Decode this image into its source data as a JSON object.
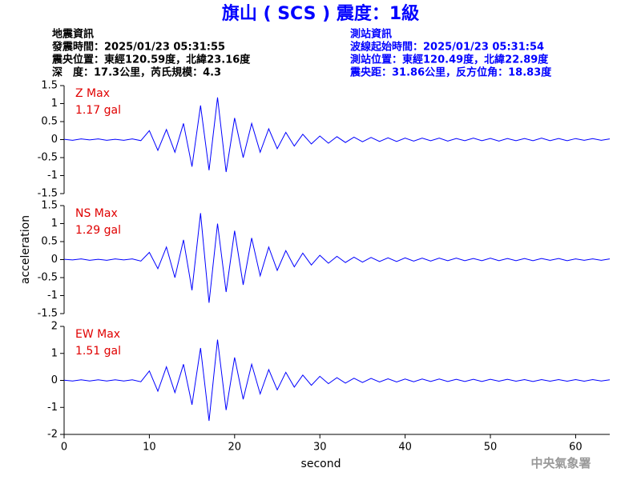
{
  "title": "旗山 ( SCS ) 震度：1級",
  "event_info": [
    "地震資訊",
    "發震時間：2025/01/23 05:31:55",
    "震央位置：東經120.59度，北緯23.16度",
    "深　度：17.3公里，芮氏規模：4.3"
  ],
  "station_info": [
    "測站資訊",
    "波線起始時間：2025/01/23 05:31:54",
    "測站位置：東經120.49度，北緯22.89度",
    "震央距：31.86公里，反方位角：18.83度"
  ],
  "ylabel": "acceleration",
  "footer": "中央氣象署",
  "chart_data": [
    {
      "type": "line",
      "max_label": "Z Max",
      "max_value": "1.17 gal",
      "color": "#0000ff",
      "ylim": [
        -1.5,
        1.5
      ],
      "yticks": [
        -1.5,
        -1,
        -0.5,
        0,
        0.5,
        1,
        1.5
      ],
      "xlim": [
        0,
        64
      ],
      "x": [
        0,
        1,
        2,
        3,
        4,
        5,
        6,
        7,
        8,
        9,
        10,
        11,
        12,
        13,
        14,
        15,
        16,
        17,
        18,
        19,
        20,
        21,
        22,
        23,
        24,
        25,
        26,
        27,
        28,
        29,
        30,
        31,
        32,
        33,
        34,
        35,
        36,
        37,
        38,
        39,
        40,
        41,
        42,
        43,
        44,
        45,
        46,
        47,
        48,
        49,
        50,
        51,
        52,
        53,
        54,
        55,
        56,
        57,
        58,
        59,
        60,
        61,
        62,
        63,
        64
      ],
      "values": [
        0.01,
        -0.02,
        0.02,
        -0.01,
        0.02,
        -0.02,
        0.01,
        -0.02,
        0.02,
        -0.03,
        0.25,
        -0.3,
        0.28,
        -0.35,
        0.45,
        -0.75,
        0.95,
        -0.85,
        1.17,
        -0.9,
        0.6,
        -0.5,
        0.45,
        -0.35,
        0.3,
        -0.25,
        0.2,
        -0.18,
        0.15,
        -0.12,
        0.1,
        -0.1,
        0.08,
        -0.08,
        0.07,
        -0.06,
        0.06,
        -0.05,
        0.05,
        -0.05,
        0.04,
        -0.04,
        0.04,
        -0.03,
        0.04,
        -0.04,
        0.03,
        -0.03,
        0.04,
        -0.03,
        0.03,
        -0.04,
        0.03,
        -0.03,
        0.03,
        -0.03,
        0.04,
        -0.03,
        0.03,
        -0.03,
        0.03,
        -0.02,
        0.03,
        -0.02,
        0.02
      ]
    },
    {
      "type": "line",
      "max_label": "NS Max",
      "max_value": "1.29 gal",
      "color": "#0000ff",
      "ylim": [
        -1.5,
        1.5
      ],
      "yticks": [
        -1.5,
        -1,
        -0.5,
        0,
        0.5,
        1,
        1.5
      ],
      "xlim": [
        0,
        64
      ],
      "x": [
        0,
        1,
        2,
        3,
        4,
        5,
        6,
        7,
        8,
        9,
        10,
        11,
        12,
        13,
        14,
        15,
        16,
        17,
        18,
        19,
        20,
        21,
        22,
        23,
        24,
        25,
        26,
        27,
        28,
        29,
        30,
        31,
        32,
        33,
        34,
        35,
        36,
        37,
        38,
        39,
        40,
        41,
        42,
        43,
        44,
        45,
        46,
        47,
        48,
        49,
        50,
        51,
        52,
        53,
        54,
        55,
        56,
        57,
        58,
        59,
        60,
        61,
        62,
        63,
        64
      ],
      "values": [
        0.01,
        -0.01,
        0.02,
        -0.02,
        0.01,
        -0.02,
        0.02,
        -0.01,
        0.02,
        -0.04,
        0.2,
        -0.25,
        0.35,
        -0.5,
        0.55,
        -0.85,
        1.29,
        -1.2,
        1.0,
        -0.9,
        0.8,
        -0.7,
        0.6,
        -0.45,
        0.35,
        -0.3,
        0.25,
        -0.2,
        0.18,
        -0.15,
        0.12,
        -0.1,
        0.09,
        -0.08,
        0.07,
        -0.07,
        0.06,
        -0.05,
        0.05,
        -0.05,
        0.05,
        -0.04,
        0.04,
        -0.04,
        0.04,
        -0.03,
        0.04,
        -0.03,
        0.03,
        -0.03,
        0.04,
        -0.03,
        0.03,
        -0.03,
        0.03,
        -0.03,
        0.03,
        -0.02,
        0.03,
        -0.03,
        0.02,
        -0.02,
        0.02,
        -0.02,
        0.02
      ]
    },
    {
      "type": "line",
      "max_label": "EW Max",
      "max_value": "1.51 gal",
      "color": "#0000ff",
      "ylim": [
        -2,
        2
      ],
      "yticks": [
        -2,
        -1,
        0,
        1,
        2
      ],
      "xlim": [
        0,
        64
      ],
      "xticks": [
        0,
        10,
        20,
        30,
        40,
        50,
        60
      ],
      "xlabel": "second",
      "x": [
        0,
        1,
        2,
        3,
        4,
        5,
        6,
        7,
        8,
        9,
        10,
        11,
        12,
        13,
        14,
        15,
        16,
        17,
        18,
        19,
        20,
        21,
        22,
        23,
        24,
        25,
        26,
        27,
        28,
        29,
        30,
        31,
        32,
        33,
        34,
        35,
        36,
        37,
        38,
        39,
        40,
        41,
        42,
        43,
        44,
        45,
        46,
        47,
        48,
        49,
        50,
        51,
        52,
        53,
        54,
        55,
        56,
        57,
        58,
        59,
        60,
        61,
        62,
        63,
        64
      ],
      "values": [
        0.01,
        -0.02,
        0.02,
        -0.02,
        0.02,
        -0.02,
        0.02,
        -0.02,
        0.02,
        -0.05,
        0.35,
        -0.4,
        0.5,
        -0.45,
        0.6,
        -0.9,
        1.2,
        -1.5,
        1.51,
        -1.1,
        0.85,
        -0.7,
        0.6,
        -0.5,
        0.4,
        -0.35,
        0.3,
        -0.25,
        0.2,
        -0.18,
        0.15,
        -0.12,
        0.1,
        -0.1,
        0.08,
        -0.08,
        0.07,
        -0.06,
        0.06,
        -0.06,
        0.05,
        -0.05,
        0.05,
        -0.04,
        0.05,
        -0.04,
        0.04,
        -0.04,
        0.04,
        -0.04,
        0.04,
        -0.03,
        0.04,
        -0.03,
        0.03,
        -0.04,
        0.03,
        -0.03,
        0.03,
        -0.03,
        0.03,
        -0.03,
        0.03,
        -0.02,
        0.02
      ]
    }
  ]
}
